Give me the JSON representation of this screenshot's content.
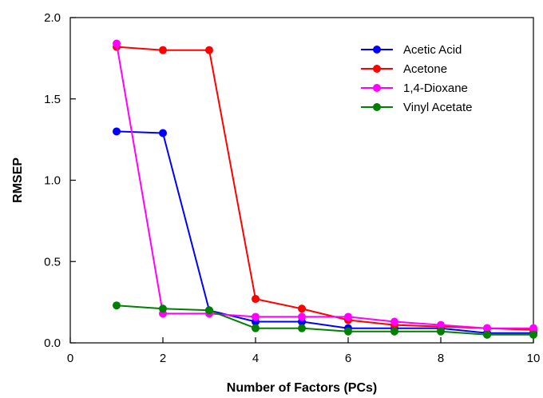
{
  "chart_data": {
    "type": "line",
    "title": "",
    "xlabel": "Number of Factors (PCs)",
    "ylabel": "RMSEP",
    "xlim": [
      0,
      10
    ],
    "ylim": [
      0,
      2.0
    ],
    "xticks": [
      0,
      2,
      4,
      6,
      8,
      10
    ],
    "xtick_labels": [
      "0",
      "2",
      "4",
      "6",
      "8",
      "10"
    ],
    "yticks": [
      0,
      0.5,
      1.0,
      1.5,
      2.0
    ],
    "ytick_labels": [
      "0.0",
      "0.5",
      "1.0",
      "1.5",
      "2.0"
    ],
    "grid": false,
    "legend_position": "top-right",
    "x": [
      1,
      2,
      3,
      4,
      5,
      6,
      7,
      8,
      9,
      10
    ],
    "series": [
      {
        "name": "Acetic Acid",
        "color": "#0000ff",
        "values": [
          1.3,
          1.29,
          0.2,
          0.13,
          0.13,
          0.09,
          0.09,
          0.09,
          0.06,
          0.06
        ]
      },
      {
        "name": "Acetone",
        "color": "#ff0000",
        "values": [
          1.82,
          1.8,
          1.8,
          0.27,
          0.21,
          0.14,
          0.11,
          0.1,
          0.09,
          0.08
        ]
      },
      {
        "name": "1,4-Dioxane",
        "color": "#ff00ff",
        "values": [
          1.84,
          0.18,
          0.18,
          0.16,
          0.16,
          0.16,
          0.13,
          0.11,
          0.09,
          0.09
        ]
      },
      {
        "name": "Vinyl Acetate",
        "color": "#008000",
        "values": [
          0.23,
          0.21,
          0.2,
          0.09,
          0.09,
          0.07,
          0.07,
          0.07,
          0.05,
          0.05
        ]
      }
    ]
  }
}
